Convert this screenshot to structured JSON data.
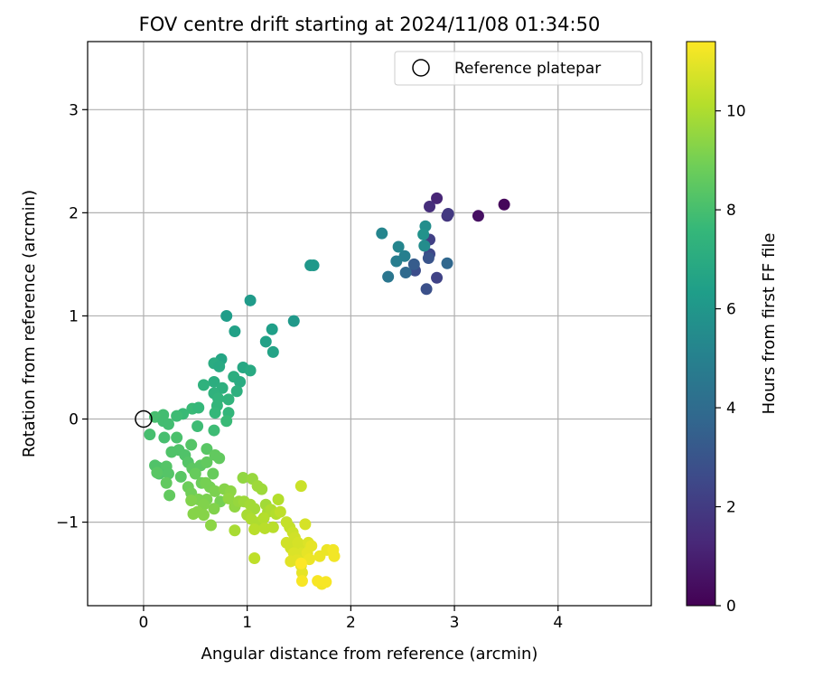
{
  "chart_data": {
    "type": "scatter",
    "title": "FOV centre drift starting at 2024/11/08 01:34:50",
    "xlabel": "Angular distance from reference (arcmin)",
    "ylabel": "Rotation from reference (arcmin)",
    "xlim": [
      -0.54,
      4.9
    ],
    "ylim": [
      -1.81,
      3.66
    ],
    "xticks": [
      0,
      1,
      2,
      3,
      4
    ],
    "yticks": [
      -1,
      0,
      1,
      2,
      3
    ],
    "grid": true,
    "legend": {
      "placement": "top-right",
      "entries": [
        "Reference platepar"
      ]
    },
    "reference": {
      "x": 0,
      "y": 0,
      "marker": "open-circle"
    },
    "colorbar": {
      "label": "Hours from first FF file",
      "colormap": "viridis",
      "range": [
        0,
        11.4
      ],
      "ticks": [
        0,
        2,
        4,
        6,
        8,
        10
      ]
    },
    "colormap_stops": [
      "#440154",
      "#482878",
      "#3e4989",
      "#31688e",
      "#26828e",
      "#1f9e89",
      "#35b779",
      "#6ece58",
      "#b5de2b",
      "#fde725"
    ],
    "series": [
      {
        "points": [
          [
            3.48,
            2.08,
            0.2
          ],
          [
            3.23,
            1.97,
            0.5
          ],
          [
            2.83,
            2.14,
            1.2
          ],
          [
            2.76,
            2.06,
            1.5
          ],
          [
            2.93,
            1.97,
            1.8
          ],
          [
            2.94,
            1.99,
            1.9
          ],
          [
            2.76,
            1.74,
            2.2
          ],
          [
            2.76,
            1.6,
            2.5
          ],
          [
            2.83,
            1.37,
            2.3
          ],
          [
            2.62,
            1.44,
            2.7
          ],
          [
            2.73,
            1.26,
            2.8
          ],
          [
            2.75,
            1.56,
            3.0
          ],
          [
            2.61,
            1.5,
            3.3
          ],
          [
            2.93,
            1.51,
            3.8
          ],
          [
            2.53,
            1.42,
            3.9
          ],
          [
            2.36,
            1.38,
            4.5
          ],
          [
            2.44,
            1.53,
            4.8
          ],
          [
            2.52,
            1.58,
            4.9
          ],
          [
            2.46,
            1.67,
            5.2
          ],
          [
            2.3,
            1.8,
            5.2
          ],
          [
            2.71,
            1.68,
            5.5
          ],
          [
            2.72,
            1.87,
            5.6
          ],
          [
            2.7,
            1.79,
            5.8
          ],
          [
            1.61,
            1.49,
            6.0
          ],
          [
            1.64,
            1.49,
            6.1
          ],
          [
            1.45,
            0.95,
            6.1
          ],
          [
            1.03,
            1.15,
            6.2
          ],
          [
            0.8,
            1.0,
            6.3
          ],
          [
            0.88,
            0.85,
            6.5
          ],
          [
            1.24,
            0.87,
            6.4
          ],
          [
            1.18,
            0.75,
            6.5
          ],
          [
            1.25,
            0.65,
            6.6
          ],
          [
            0.75,
            0.58,
            6.7
          ],
          [
            0.96,
            0.5,
            6.8
          ],
          [
            1.03,
            0.47,
            6.9
          ],
          [
            0.68,
            0.54,
            7.0
          ],
          [
            0.73,
            0.51,
            6.9
          ],
          [
            0.87,
            0.41,
            7.1
          ],
          [
            0.93,
            0.36,
            7.0
          ],
          [
            0.68,
            0.36,
            7.1
          ],
          [
            0.76,
            0.3,
            7.2
          ],
          [
            0.9,
            0.27,
            7.2
          ],
          [
            0.58,
            0.33,
            7.3
          ],
          [
            0.68,
            0.25,
            7.3
          ],
          [
            0.82,
            0.19,
            7.4
          ],
          [
            0.72,
            0.2,
            7.4
          ],
          [
            0.71,
            0.13,
            7.5
          ],
          [
            0.82,
            0.06,
            7.5
          ],
          [
            0.69,
            0.06,
            7.6
          ],
          [
            0.47,
            0.1,
            7.7
          ],
          [
            0.53,
            0.11,
            7.6
          ],
          [
            0.38,
            0.05,
            7.7
          ],
          [
            0.32,
            0.03,
            7.8
          ],
          [
            0.8,
            -0.02,
            7.7
          ],
          [
            0.52,
            -0.07,
            7.8
          ],
          [
            0.68,
            -0.11,
            7.8
          ],
          [
            0.19,
            0.04,
            7.9
          ],
          [
            0.11,
            0.02,
            8.0
          ],
          [
            0.19,
            -0.02,
            7.9
          ],
          [
            0.24,
            -0.05,
            7.9
          ],
          [
            0.06,
            -0.15,
            8.0
          ],
          [
            0.2,
            -0.18,
            8.0
          ],
          [
            0.32,
            -0.18,
            8.1
          ],
          [
            0.34,
            -0.3,
            8.2
          ],
          [
            0.27,
            -0.32,
            8.2
          ],
          [
            0.4,
            -0.35,
            8.2
          ],
          [
            0.46,
            -0.25,
            8.3
          ],
          [
            0.61,
            -0.29,
            8.4
          ],
          [
            0.43,
            -0.42,
            8.3
          ],
          [
            0.14,
            -0.47,
            8.1
          ],
          [
            0.11,
            -0.45,
            8.2
          ],
          [
            0.22,
            -0.46,
            8.3
          ],
          [
            0.15,
            -0.53,
            8.2
          ],
          [
            0.24,
            -0.53,
            8.3
          ],
          [
            0.13,
            -0.52,
            8.4
          ],
          [
            0.36,
            -0.56,
            8.4
          ],
          [
            0.47,
            -0.48,
            8.5
          ],
          [
            0.55,
            -0.45,
            8.5
          ],
          [
            0.61,
            -0.42,
            8.6
          ],
          [
            0.69,
            -0.35,
            8.6
          ],
          [
            0.73,
            -0.38,
            8.6
          ],
          [
            0.5,
            -0.53,
            8.7
          ],
          [
            0.67,
            -0.53,
            8.7
          ],
          [
            0.56,
            -0.62,
            8.8
          ],
          [
            0.22,
            -0.62,
            8.6
          ],
          [
            0.25,
            -0.74,
            8.6
          ],
          [
            0.43,
            -0.66,
            8.8
          ],
          [
            0.46,
            -0.72,
            8.9
          ],
          [
            0.6,
            -0.62,
            9.0
          ],
          [
            0.64,
            -0.66,
            9.0
          ],
          [
            0.69,
            -0.7,
            9.1
          ],
          [
            0.61,
            -0.78,
            9.1
          ],
          [
            0.74,
            -0.8,
            9.0
          ],
          [
            0.53,
            -0.78,
            9.1
          ],
          [
            0.46,
            -0.79,
            9.2
          ],
          [
            0.68,
            -0.87,
            9.2
          ],
          [
            0.58,
            -0.83,
            9.2
          ],
          [
            0.52,
            -0.9,
            9.3
          ],
          [
            0.48,
            -0.92,
            9.3
          ],
          [
            0.58,
            -0.93,
            9.3
          ],
          [
            0.65,
            -1.03,
            9.4
          ],
          [
            0.78,
            -0.68,
            9.3
          ],
          [
            0.84,
            -0.7,
            9.4
          ],
          [
            0.82,
            -0.77,
            9.5
          ],
          [
            0.88,
            -0.85,
            9.5
          ],
          [
            0.96,
            -0.57,
            9.5
          ],
          [
            0.92,
            -0.8,
            9.6
          ],
          [
            1.05,
            -0.58,
            9.6
          ],
          [
            1.1,
            -0.65,
            9.7
          ],
          [
            1.14,
            -0.68,
            9.7
          ],
          [
            0.97,
            -0.8,
            9.7
          ],
          [
            1.03,
            -0.83,
            9.8
          ],
          [
            1.07,
            -0.87,
            9.8
          ],
          [
            1.18,
            -0.83,
            9.8
          ],
          [
            1.2,
            -0.9,
            9.9
          ],
          [
            0.88,
            -1.08,
            9.9
          ],
          [
            1.0,
            -0.93,
            9.9
          ],
          [
            1.04,
            -0.97,
            10.0
          ],
          [
            1.12,
            -1.0,
            10.0
          ],
          [
            1.23,
            -0.88,
            10.0
          ],
          [
            1.16,
            -0.96,
            10.1
          ],
          [
            1.28,
            -0.92,
            10.1
          ],
          [
            1.3,
            -0.78,
            10.1
          ],
          [
            1.07,
            -1.07,
            10.2
          ],
          [
            1.17,
            -1.06,
            10.2
          ],
          [
            1.25,
            -1.05,
            10.2
          ],
          [
            1.32,
            -0.9,
            10.3
          ],
          [
            1.07,
            -1.35,
            10.3
          ],
          [
            1.38,
            -1.0,
            10.4
          ],
          [
            1.41,
            -1.05,
            10.4
          ],
          [
            1.52,
            -0.65,
            10.5
          ],
          [
            1.44,
            -1.1,
            10.5
          ],
          [
            1.46,
            -1.15,
            10.6
          ],
          [
            1.38,
            -1.2,
            10.6
          ],
          [
            1.42,
            -1.25,
            10.6
          ],
          [
            1.49,
            -1.2,
            10.7
          ],
          [
            1.5,
            -1.25,
            10.7
          ],
          [
            1.56,
            -1.02,
            10.7
          ],
          [
            1.53,
            -1.3,
            10.8
          ],
          [
            1.45,
            -1.3,
            10.8
          ],
          [
            1.59,
            -1.2,
            10.8
          ],
          [
            1.42,
            -1.38,
            10.9
          ],
          [
            1.48,
            -1.37,
            10.9
          ],
          [
            1.52,
            -1.42,
            10.9
          ],
          [
            1.58,
            -1.3,
            11.0
          ],
          [
            1.62,
            -1.23,
            11.0
          ],
          [
            1.53,
            -1.49,
            11.0
          ],
          [
            1.6,
            -1.36,
            11.1
          ],
          [
            1.7,
            -1.33,
            11.1
          ],
          [
            1.77,
            -1.27,
            11.1
          ],
          [
            1.83,
            -1.27,
            11.2
          ],
          [
            1.84,
            -1.33,
            11.2
          ],
          [
            1.72,
            -1.6,
            11.2
          ],
          [
            1.76,
            -1.58,
            11.3
          ],
          [
            1.68,
            -1.57,
            11.3
          ],
          [
            1.53,
            -1.57,
            11.3
          ],
          [
            1.52,
            -1.4,
            11.4
          ]
        ]
      }
    ]
  }
}
